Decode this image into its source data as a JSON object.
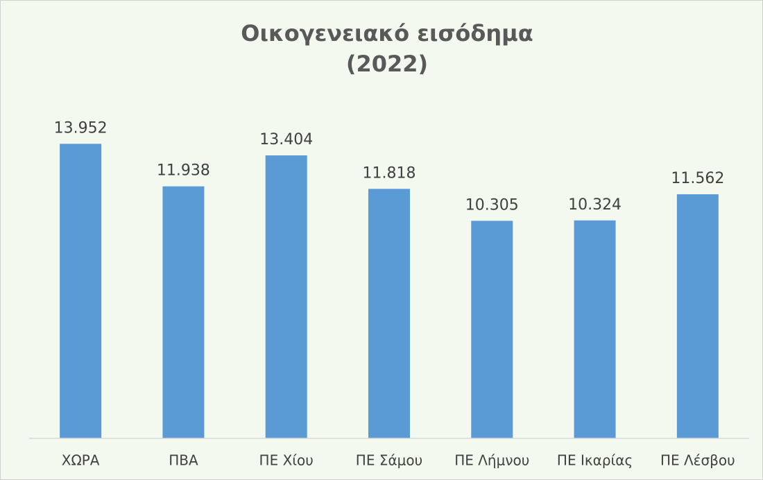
{
  "chart_data": {
    "type": "bar",
    "title": [
      "Οικογενειακό εισόδημα",
      "(2022)"
    ],
    "categories": [
      "ΧΩΡΑ",
      "ΠΒΑ",
      "ΠΕ Χίου",
      "ΠΕ Σάμου",
      "ΠΕ Λήμνου",
      "ΠΕ Ικαρίας",
      "ΠΕ Λέσβου"
    ],
    "values": [
      13952,
      11938,
      13404,
      11818,
      10305,
      10324,
      11562
    ],
    "value_labels": [
      "13.952",
      "11.938",
      "13.404",
      "11.818",
      "10.305",
      "10.324",
      "11.562"
    ],
    "color": "#5b9bd5",
    "ylim": [
      0,
      16000
    ]
  }
}
